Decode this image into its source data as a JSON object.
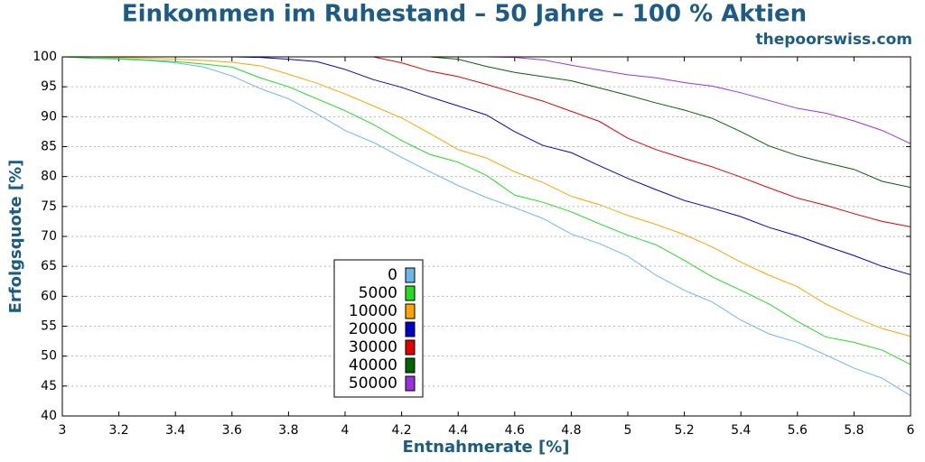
{
  "chart_data": {
    "type": "line",
    "title": "Einkommen im Ruhestand – 50 Jahre – 100 % Aktien",
    "subtitle": "thepoorswiss.com",
    "x_label": "Entnahmerate [%]",
    "y_label": "Erfolgsquote [%]",
    "x": [
      3.0,
      3.1,
      3.2,
      3.3,
      3.4,
      3.5,
      3.6,
      3.7,
      3.8,
      3.9,
      4.0,
      4.1,
      4.2,
      4.3,
      4.4,
      4.5,
      4.6,
      4.7,
      4.8,
      4.9,
      5.0,
      5.1,
      5.2,
      5.3,
      5.4,
      5.5,
      5.6,
      5.7,
      5.8,
      5.9,
      6.0
    ],
    "xlim": [
      3,
      6
    ],
    "xticks": [
      3,
      3.2,
      3.4,
      3.6,
      3.8,
      4,
      4.2,
      4.4,
      4.6,
      4.8,
      5,
      5.2,
      5.4,
      5.6,
      5.8,
      6
    ],
    "ylim": [
      40,
      100
    ],
    "yticks": [
      40,
      45,
      50,
      55,
      60,
      65,
      70,
      75,
      80,
      85,
      90,
      95,
      100
    ],
    "grid": true,
    "series": [
      {
        "name": "0",
        "color": "#6bb8e8",
        "values": [
          100,
          99.8,
          99.6,
          99.4,
          99,
          98.3,
          96.8,
          94.7,
          93,
          90.5,
          87.7,
          85.7,
          83.2,
          80.8,
          78.5,
          76.5,
          74.8,
          73,
          70.4,
          68.8,
          66.7,
          63.5,
          61,
          59,
          56,
          53.7,
          52.3,
          50.2,
          48,
          46.3,
          43.4
        ]
      },
      {
        "name": "5000",
        "color": "#22dd22",
        "values": [
          100,
          99.8,
          99.7,
          99.5,
          99.2,
          98.8,
          98.3,
          96.5,
          95,
          93,
          91,
          88.7,
          86,
          83.7,
          82.4,
          80.2,
          76.9,
          75.7,
          74.1,
          72.1,
          70.2,
          68.6,
          66,
          63.2,
          61,
          58.7,
          55.8,
          53.2,
          52.3,
          51,
          48.6
        ]
      },
      {
        "name": "10000",
        "color": "#ffa500",
        "values": [
          100,
          100,
          99.9,
          99.8,
          99.6,
          99.4,
          99.1,
          98.5,
          97.1,
          95.6,
          93.8,
          91.8,
          89.8,
          87.2,
          84.5,
          83.1,
          80.8,
          79,
          76.7,
          75.3,
          73.5,
          72,
          70.3,
          68.2,
          65.7,
          63.5,
          61.6,
          58.7,
          56.5,
          54.6,
          53.3
        ]
      },
      {
        "name": "20000",
        "color": "#0000cc",
        "values": [
          100,
          100,
          100,
          100,
          100,
          100,
          100,
          99.9,
          99.6,
          99.2,
          97.9,
          96.2,
          94.9,
          93.3,
          91.8,
          90.3,
          87.5,
          85.2,
          84,
          81.8,
          79.7,
          77.8,
          76,
          74.7,
          73.3,
          71.5,
          70.1,
          68.4,
          66.8,
          65,
          63.6
        ]
      },
      {
        "name": "30000",
        "color": "#e00000",
        "values": [
          100,
          100,
          100,
          100,
          100,
          100,
          100,
          100,
          100,
          100,
          100,
          100,
          99,
          97.6,
          96.7,
          95.4,
          94,
          92.6,
          90.9,
          89.2,
          86.4,
          84.5,
          83,
          81.6,
          79.9,
          78.1,
          76.4,
          75.2,
          73.8,
          72.5,
          71.6
        ]
      },
      {
        "name": "40000",
        "color": "#006400",
        "values": [
          100,
          100,
          100,
          100,
          100,
          100,
          100,
          100,
          100,
          100,
          100,
          100,
          100,
          100,
          99.6,
          98.4,
          97.4,
          96.7,
          96,
          94.8,
          93.6,
          92.3,
          91.1,
          89.7,
          87.5,
          85.1,
          83.5,
          82.3,
          81.2,
          79.2,
          78.2
        ]
      },
      {
        "name": "50000",
        "color": "#9b30e0",
        "values": [
          100,
          100,
          100,
          100,
          100,
          100,
          100,
          100,
          100,
          100,
          100,
          100,
          100,
          100,
          100,
          100,
          99.9,
          99.5,
          98.6,
          97.8,
          97,
          96.5,
          95.7,
          95.1,
          94,
          92.7,
          91.4,
          90.6,
          89.3,
          87.7,
          85.5
        ]
      }
    ]
  }
}
